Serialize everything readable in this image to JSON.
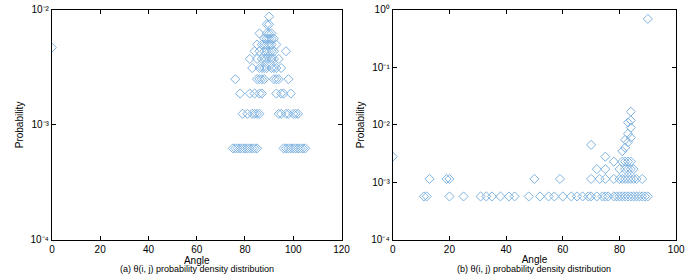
{
  "chart_data": [
    {
      "type": "scatter",
      "title": "(a) θ(i, j) probability density distribution",
      "x_label": "Angle",
      "y_label": "Probability",
      "color": "#7fb3e0",
      "marker": "diamond-open",
      "log": "y",
      "xlim": [
        0,
        120
      ],
      "xticks": [
        0,
        20,
        40,
        60,
        80,
        100,
        120
      ],
      "ylim": [
        0.0001,
        0.01
      ],
      "yticks": [
        {
          "value": 0.0001,
          "label": "10⁻⁴"
        },
        {
          "value": 0.001,
          "label": "10⁻³"
        },
        {
          "value": 0.01,
          "label": "10⁻²"
        }
      ],
      "x": [
        0,
        75,
        76,
        77,
        78,
        79,
        80,
        81,
        82,
        83,
        84,
        85,
        96,
        97,
        98,
        99,
        100,
        101,
        102,
        103,
        104,
        105,
        79,
        81,
        83,
        84,
        85,
        86,
        94,
        95,
        97,
        98,
        100,
        101,
        102,
        78,
        82,
        84,
        86,
        87,
        93,
        95,
        96,
        99,
        76,
        85,
        86,
        87,
        88,
        92,
        93,
        94,
        98,
        83,
        86,
        87,
        88,
        89,
        91,
        92,
        93,
        95,
        82,
        85,
        87,
        88,
        89,
        90,
        91,
        92,
        94,
        84,
        86,
        88,
        89,
        90,
        91,
        92,
        97,
        85,
        87,
        88,
        89,
        90,
        91,
        93,
        88,
        89,
        90,
        91,
        92,
        86,
        89,
        90,
        91,
        89,
        90,
        90
      ],
      "values": [
        0.0047,
        0.000625,
        0.000625,
        0.000625,
        0.000625,
        0.000625,
        0.000625,
        0.000625,
        0.000625,
        0.000625,
        0.000625,
        0.000625,
        0.000625,
        0.000625,
        0.000625,
        0.000625,
        0.000625,
        0.000625,
        0.000625,
        0.000625,
        0.000625,
        0.000625,
        0.00125,
        0.00125,
        0.00125,
        0.00125,
        0.00125,
        0.00125,
        0.00125,
        0.00125,
        0.00125,
        0.00125,
        0.00125,
        0.00125,
        0.00125,
        0.001875,
        0.001875,
        0.001875,
        0.001875,
        0.001875,
        0.001875,
        0.001875,
        0.001875,
        0.001875,
        0.0025,
        0.0025,
        0.0025,
        0.0025,
        0.0025,
        0.0025,
        0.0025,
        0.0025,
        0.0025,
        0.003125,
        0.003125,
        0.003125,
        0.003125,
        0.003125,
        0.003125,
        0.003125,
        0.003125,
        0.003125,
        0.00375,
        0.00375,
        0.00375,
        0.00375,
        0.00375,
        0.00375,
        0.00375,
        0.00375,
        0.00375,
        0.004375,
        0.004375,
        0.004375,
        0.004375,
        0.004375,
        0.004375,
        0.004375,
        0.004375,
        0.005,
        0.005,
        0.005,
        0.005,
        0.005,
        0.005,
        0.005,
        0.005625,
        0.005625,
        0.005625,
        0.005625,
        0.005625,
        0.00625,
        0.00625,
        0.00625,
        0.00625,
        0.0075,
        0.0075,
        0.00875
      ]
    },
    {
      "type": "scatter",
      "title": "(b) θ(i, j) probability density distribution",
      "x_label": "Angle",
      "y_label": "Probability",
      "color": "#7fb3e0",
      "marker": "diamond-open",
      "log": "y",
      "xlim": [
        0,
        100
      ],
      "xticks": [
        0,
        20,
        40,
        60,
        80,
        100
      ],
      "ylim": [
        0.0001,
        1
      ],
      "yticks": [
        {
          "value": 0.0001,
          "label": "10⁻⁴"
        },
        {
          "value": 0.001,
          "label": "10⁻³"
        },
        {
          "value": 0.01,
          "label": "10⁻²"
        },
        {
          "value": 0.1,
          "label": "10⁻¹"
        },
        {
          "value": 1,
          "label": "10⁰"
        }
      ],
      "x": [
        0,
        90,
        11,
        12,
        20,
        25,
        31,
        33,
        35,
        38,
        41,
        43,
        48,
        52,
        55,
        57,
        60,
        63,
        65,
        67,
        69,
        70,
        72,
        74,
        75,
        76,
        78,
        79,
        80,
        81,
        82,
        83,
        84,
        85,
        86,
        87,
        88,
        89,
        90,
        13,
        19,
        20,
        50,
        59,
        70,
        73,
        75,
        78,
        80,
        81,
        82,
        83,
        84,
        85,
        86,
        88,
        72,
        75,
        80,
        82,
        83,
        84,
        85,
        78,
        81,
        82,
        83,
        84,
        70,
        75,
        81,
        82,
        83,
        84,
        83,
        84,
        84,
        84,
        83,
        82
      ],
      "values": [
        0.0028,
        0.7,
        0.00057,
        0.00057,
        0.00057,
        0.00057,
        0.00057,
        0.00057,
        0.00057,
        0.00057,
        0.00057,
        0.00057,
        0.00057,
        0.00057,
        0.00057,
        0.00057,
        0.00057,
        0.00057,
        0.00057,
        0.00057,
        0.00057,
        0.00057,
        0.00057,
        0.00057,
        0.00057,
        0.00057,
        0.00057,
        0.00057,
        0.00057,
        0.00057,
        0.00057,
        0.00057,
        0.00057,
        0.00057,
        0.00057,
        0.00057,
        0.00057,
        0.00057,
        0.00057,
        0.00115,
        0.00115,
        0.00115,
        0.00115,
        0.00115,
        0.00115,
        0.00115,
        0.00115,
        0.00115,
        0.00115,
        0.00115,
        0.00115,
        0.00115,
        0.00115,
        0.00115,
        0.00115,
        0.00115,
        0.0017,
        0.0017,
        0.0017,
        0.0017,
        0.0017,
        0.0017,
        0.0017,
        0.0023,
        0.0023,
        0.0023,
        0.0023,
        0.0023,
        0.0045,
        0.0028,
        0.0035,
        0.004,
        0.005,
        0.006,
        0.007,
        0.009,
        0.012,
        0.017,
        0.011,
        0.0055
      ]
    }
  ]
}
